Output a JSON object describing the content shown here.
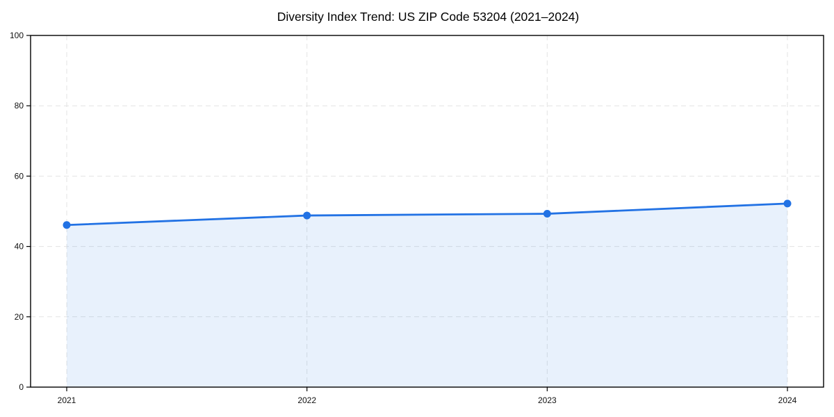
{
  "chart_data": {
    "type": "line",
    "title": "Diversity Index Trend: US ZIP Code 53204 (2021–2024)",
    "categories": [
      "2021",
      "2022",
      "2023",
      "2024"
    ],
    "series": [
      {
        "name": "Diversity Index",
        "values": [
          46.1,
          48.8,
          49.3,
          52.2
        ]
      }
    ],
    "xlabel": "",
    "ylabel": "",
    "ylim": [
      0,
      100
    ],
    "yticks": [
      0,
      20,
      40,
      60,
      80,
      100
    ],
    "grid": true,
    "legend": false,
    "marker": "circle",
    "line_color": "#2272e4",
    "marker_color": "#2272e4",
    "area_fill_color": "#2272e4",
    "area_fill_opacity": 0.1,
    "grid_color": "#e3e3e3",
    "axis_color": "#000000",
    "tick_label_color": "#111111",
    "background_color": "#ffffff"
  }
}
